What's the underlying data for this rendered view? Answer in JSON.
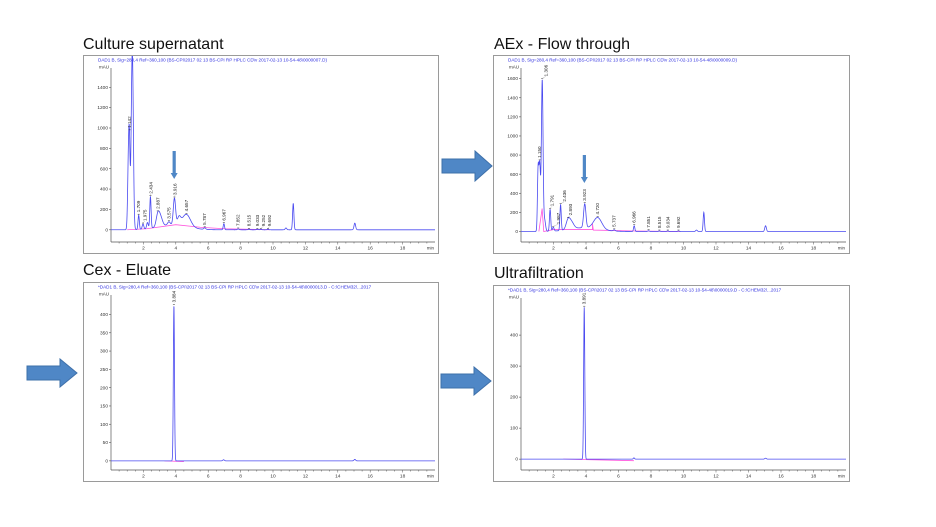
{
  "colors": {
    "trace": "#4a4af0",
    "baseline": "#ff55dd",
    "arrow": "#4f87c6",
    "axis": "#555555",
    "header": "#3030e0"
  },
  "chart_data": [
    {
      "type": "line",
      "title": "Culture supernatant",
      "header": "DAD1 B, Sig=280,4 Ref=360,100 (BS-CPI\\2017 02 13 BS-CPI RP HPLC CD\\v 2017-02-13 10-54-48\\0000007.D)",
      "ylabel": "mAU",
      "xlabel": "min",
      "xlim": [
        0,
        20
      ],
      "ylim": [
        -120,
        1560
      ],
      "xticks": [
        2,
        4,
        6,
        8,
        10,
        12,
        14,
        16,
        18
      ],
      "yticks": [
        0,
        200,
        400,
        600,
        800,
        1000,
        1200,
        1400
      ],
      "peaks": [
        {
          "rt": 1.08,
          "height": 700,
          "width": 0.05
        },
        {
          "rt": 1.142,
          "height": 600,
          "width": 0.04,
          "label": "1.142"
        },
        {
          "rt": 1.3,
          "height": 1500,
          "width": 0.06
        },
        {
          "rt": 1.36,
          "height": 450,
          "width": 0.05
        },
        {
          "rt": 1.709,
          "height": 140,
          "width": 0.04,
          "label": "1.709"
        },
        {
          "rt": 1.975,
          "height": 50,
          "width": 0.05,
          "label": "1.975"
        },
        {
          "rt": 2.25,
          "height": 60,
          "width": 0.05
        },
        {
          "rt": 2.434,
          "height": 310,
          "width": 0.04,
          "label": "2.434"
        },
        {
          "rt": 2.887,
          "height": 110,
          "width": 0.1,
          "label": "2.887"
        },
        {
          "rt": 3.05,
          "height": 90,
          "width": 0.12
        },
        {
          "rt": 3.575,
          "height": 30,
          "width": 0.08,
          "label": "3.575"
        },
        {
          "rt": 3.916,
          "height": 260,
          "width": 0.07,
          "label": "3.916"
        },
        {
          "rt": 4.2,
          "height": 70,
          "width": 0.1
        },
        {
          "rt": 4.657,
          "height": 120,
          "width": 0.25,
          "label": "4.657"
        },
        {
          "rt": 3.8,
          "height": 50,
          "width": 0.9
        },
        {
          "rt": 5.787,
          "height": 15,
          "width": 0.06,
          "label": "5.787"
        },
        {
          "rt": 6.967,
          "height": 60,
          "width": 0.04,
          "label": "6.967"
        },
        {
          "rt": 7.852,
          "height": 8,
          "width": 0.05,
          "label": "7.852"
        },
        {
          "rt": 8.515,
          "height": 5,
          "width": 0.05,
          "label": "8.515"
        },
        {
          "rt": 9.033,
          "height": 5,
          "width": 0.05,
          "label": "9.033"
        },
        {
          "rt": 9.252,
          "height": 5,
          "width": 0.05,
          "label": "9.252"
        },
        {
          "rt": 9.692,
          "height": 5,
          "width": 0.05,
          "label": "9.692"
        },
        {
          "rt": 10.8,
          "height": 18,
          "width": 0.05
        },
        {
          "rt": 11.25,
          "height": 260,
          "width": 0.04
        },
        {
          "rt": 15.05,
          "height": 65,
          "width": 0.05
        }
      ],
      "integration_baseline": [
        [
          1.0,
          0
        ],
        [
          2.2,
          10
        ],
        [
          4.0,
          50
        ],
        [
          5.5,
          25
        ],
        [
          7.0,
          10
        ],
        [
          9.8,
          0
        ]
      ],
      "annotation_arrow_rt": 3.9
    },
    {
      "type": "line",
      "title": "AEx - Flow through",
      "header": "DAD1 B, Sig=280,4 Ref=360,100 (BS-CPI\\2017 02 13 BS-CPI RP HPLC CD\\v 2017-02-13 10-54-48\\0000009.D)",
      "ylabel": "mAU",
      "xlabel": "min",
      "xlim": [
        0,
        20
      ],
      "ylim": [
        -110,
        1680
      ],
      "xticks": [
        2,
        4,
        6,
        8,
        10,
        12,
        14,
        16,
        18
      ],
      "yticks": [
        0,
        200,
        400,
        600,
        800,
        1000,
        1200,
        1400,
        1600
      ],
      "peaks": [
        {
          "rt": 1.05,
          "height": 600,
          "width": 0.04
        },
        {
          "rt": 1.15,
          "height": 700,
          "width": 0.05,
          "label": "1.150"
        },
        {
          "rt": 1.306,
          "height": 1580,
          "width": 0.05,
          "label": "1.306"
        },
        {
          "rt": 1.45,
          "height": 120,
          "width": 0.06
        },
        {
          "rt": 1.791,
          "height": 230,
          "width": 0.04,
          "label": "1.791"
        },
        {
          "rt": 1.987,
          "height": 40,
          "width": 0.05,
          "label": "1.987"
        },
        {
          "rt": 2.436,
          "height": 270,
          "width": 0.04,
          "label": "2.436"
        },
        {
          "rt": 2.893,
          "height": 90,
          "width": 0.12,
          "label": "2.893"
        },
        {
          "rt": 3.1,
          "height": 70,
          "width": 0.15
        },
        {
          "rt": 3.923,
          "height": 250,
          "width": 0.07,
          "label": "3.923"
        },
        {
          "rt": 4.72,
          "height": 120,
          "width": 0.25,
          "label": "4.720"
        },
        {
          "rt": 3.9,
          "height": 40,
          "width": 0.9
        },
        {
          "rt": 5.737,
          "height": 12,
          "width": 0.06,
          "label": "5.737"
        },
        {
          "rt": 6.966,
          "height": 60,
          "width": 0.04,
          "label": "6.966"
        },
        {
          "rt": 7.851,
          "height": 8,
          "width": 0.05,
          "label": "7.851"
        },
        {
          "rt": 8.515,
          "height": 5,
          "width": 0.05,
          "label": "8.515"
        },
        {
          "rt": 9.034,
          "height": 5,
          "width": 0.05,
          "label": "9.034"
        },
        {
          "rt": 9.692,
          "height": 5,
          "width": 0.05,
          "label": "9.692"
        },
        {
          "rt": 10.8,
          "height": 15,
          "width": 0.05
        },
        {
          "rt": 11.25,
          "height": 200,
          "width": 0.04
        },
        {
          "rt": 15.05,
          "height": 60,
          "width": 0.05
        }
      ],
      "integration_baseline": [
        [
          1.1,
          0
        ],
        [
          1.3,
          240
        ],
        [
          1.4,
          0
        ],
        [
          2.0,
          20
        ],
        [
          4.4,
          20
        ],
        [
          4.4,
          80
        ],
        [
          4.45,
          15
        ],
        [
          7.0,
          5
        ],
        [
          9.8,
          0
        ]
      ],
      "annotation_arrow_rt": 3.9
    },
    {
      "type": "line",
      "title": "Cex - Eluate",
      "header": "*DAD1 B, Sig=280,4 Ref=360,100 (BS-CPI\\2017 02 13 BS-CPI RP HPLC CD\\v 2017-02-13 10-54-48\\0000013.D - C:\\CHEM32\\...2017",
      "ylabel": "mAU",
      "xlabel": "min",
      "xlim": [
        0,
        20
      ],
      "ylim": [
        -25,
        445
      ],
      "xticks": [
        2,
        4,
        6,
        8,
        10,
        12,
        14,
        16,
        18
      ],
      "yticks": [
        0,
        50,
        100,
        150,
        200,
        250,
        300,
        350,
        400
      ],
      "peaks": [
        {
          "rt": 3.884,
          "height": 425,
          "width": 0.035,
          "label": "3.884"
        },
        {
          "rt": 6.95,
          "height": 3,
          "width": 0.05
        },
        {
          "rt": 15.05,
          "height": 4,
          "width": 0.05
        }
      ],
      "integration_baseline": [
        [
          3.3,
          0
        ],
        [
          4.5,
          -2
        ]
      ]
    },
    {
      "type": "line",
      "title": "Ultrafiltration",
      "header": "*DAD1 B, Sig=280,4 Ref=360,100 (BS-CPI\\2017 02 13 BS-CPI RP HPLC CD\\v 2017-02-13 10-54-48\\0000019.D - C:\\CHEM32\\...2017",
      "ylabel": "mAU",
      "xlabel": "min",
      "xlim": [
        0,
        20
      ],
      "ylim": [
        -35,
        510
      ],
      "xticks": [
        2,
        4,
        6,
        8,
        10,
        12,
        14,
        16,
        18
      ],
      "yticks": [
        0,
        100,
        200,
        300,
        400
      ],
      "peaks": [
        {
          "rt": 3.891,
          "height": 490,
          "width": 0.035,
          "label": "3.891"
        },
        {
          "rt": 6.95,
          "height": 4,
          "width": 0.04
        },
        {
          "rt": 15.05,
          "height": 3,
          "width": 0.05
        }
      ],
      "integration_baseline": [
        [
          2.6,
          0
        ],
        [
          6.95,
          -5
        ]
      ]
    }
  ]
}
